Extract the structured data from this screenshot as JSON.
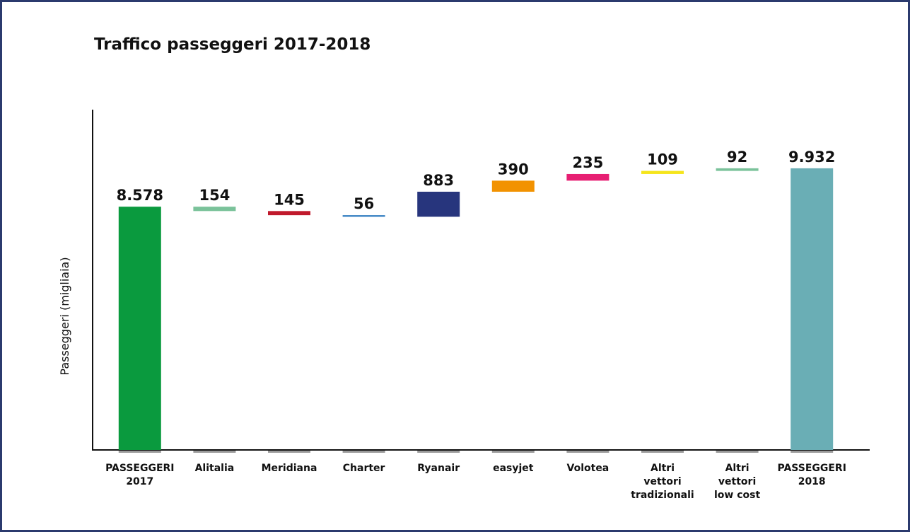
{
  "chart_data": {
    "type": "waterfall",
    "title": "Traffico passeggeri 2017-2018",
    "y_label": "Passeggeri (migliaia)",
    "categories": [
      "PASSEGGERI\n2017",
      "Alitalia",
      "Meridiana",
      "Charter",
      "Ryanair",
      "easyjet",
      "Volotea",
      "Altri\nvettori\ntradizionali",
      "Altri\nvettori\nlow cost",
      "PASSEGGERI\n2018"
    ],
    "values": [
      8578,
      -154,
      -145,
      -56,
      883,
      390,
      235,
      109,
      92,
      9932
    ],
    "value_labels": [
      "8.578",
      "154",
      "145",
      "56",
      "883",
      "390",
      "235",
      "109",
      "92",
      "9.932"
    ],
    "colors": [
      "#0a9a3e",
      "#7ac29a",
      "#c0192c",
      "#2e7bbf",
      "#27357d",
      "#f29200",
      "#e71f73",
      "#f5e51c",
      "#7ac29a",
      "#6aaeb5"
    ],
    "ylim": [
      0,
      12000
    ]
  }
}
